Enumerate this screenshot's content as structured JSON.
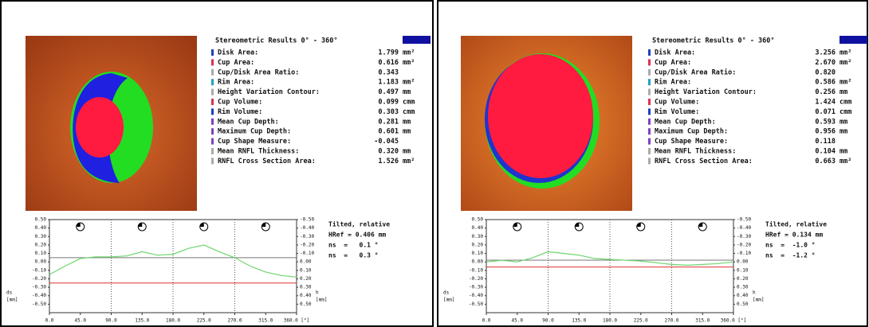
{
  "panels": [
    {
      "results": {
        "title": "Stereometric Results 0° - 360°",
        "rows": [
          {
            "label": "Disk Area:",
            "value": "1.799",
            "unit": "mm²"
          },
          {
            "label": "Cup Area:",
            "value": "0.616",
            "unit": "mm²"
          },
          {
            "label": "Cup/Disk Area Ratio:",
            "value": "0.343",
            "unit": ""
          },
          {
            "label": "Rim Area:",
            "value": "1.183",
            "unit": "mm²"
          },
          {
            "label": "Height Variation Contour:",
            "value": "0.497",
            "unit": "mm"
          },
          {
            "label": "Cup Volume:",
            "value": "0.099",
            "unit": "cmm"
          },
          {
            "label": "Rim Volume:",
            "value": "0.303",
            "unit": "cmm"
          },
          {
            "label": "Mean Cup Depth:",
            "value": "0.281",
            "unit": "mm"
          },
          {
            "label": "Maximum Cup Depth:",
            "value": "0.601",
            "unit": "mm"
          },
          {
            "label": "Cup Shape Measure:",
            "value": "-0.045",
            "unit": ""
          },
          {
            "label": "Mean RNFL Thickness:",
            "value": "0.320",
            "unit": "mm"
          },
          {
            "label": "RNFL Cross Section Area:",
            "value": "1.526",
            "unit": "mm²"
          }
        ]
      },
      "graph": {
        "mode": "Tilted, relative",
        "href": "HRef = 0.406 mm",
        "ns1": "ns  =   0.1 °",
        "ns2": "ns  =   0.3 °",
        "y_label_left": [
          "ds",
          "[mm]"
        ],
        "y_label_right": [
          "h",
          "[mm]"
        ],
        "contour": [
          -0.15,
          -0.05,
          0.04,
          0.06,
          0.06,
          0.07,
          0.12,
          0.08,
          0.09,
          0.16,
          0.2,
          0.12,
          0.05,
          -0.05,
          -0.12,
          -0.16,
          -0.18
        ],
        "contour_line": 0.05,
        "reference_line": -0.25
      }
    },
    {
      "results": {
        "title": "Stereometric Results 0° - 360°",
        "rows": [
          {
            "label": "Disk Area:",
            "value": "3.256",
            "unit": "mm²"
          },
          {
            "label": "Cup Area:",
            "value": "2.670",
            "unit": "mm²"
          },
          {
            "label": "Cup/Disk Area Ratio:",
            "value": "0.820",
            "unit": ""
          },
          {
            "label": "Rim Area:",
            "value": "0.586",
            "unit": "mm²"
          },
          {
            "label": "Height Variation Contour:",
            "value": "0.256",
            "unit": "mm"
          },
          {
            "label": "Cup Volume:",
            "value": "1.424",
            "unit": "cmm"
          },
          {
            "label": "Rim Volume:",
            "value": "0.071",
            "unit": "cmm"
          },
          {
            "label": "Mean Cup Depth:",
            "value": "0.593",
            "unit": "mm"
          },
          {
            "label": "Maximum Cup Depth:",
            "value": "0.956",
            "unit": "mm"
          },
          {
            "label": "Cup Shape Measure:",
            "value": "0.118",
            "unit": ""
          },
          {
            "label": "Mean RNFL Thickness:",
            "value": "0.104",
            "unit": "mm"
          },
          {
            "label": "RNFL Cross Section Area:",
            "value": "0.663",
            "unit": "mm²"
          }
        ]
      },
      "graph": {
        "mode": "Tilted, relative",
        "href": "HRef = 0.134 mm",
        "ns1": "ns  =  -1.0 °",
        "ns2": "ns  =  -1.2 °",
        "y_label_left": [
          "ds",
          "[mm]"
        ],
        "y_label_right": [
          "h",
          "[mm]"
        ],
        "contour": [
          0.0,
          0.02,
          0.0,
          0.05,
          0.12,
          0.1,
          0.08,
          0.04,
          0.03,
          0.02,
          0.01,
          -0.01,
          -0.03,
          -0.04,
          -0.03,
          -0.02,
          0.0
        ],
        "contour_line": 0.02,
        "reference_line": -0.06
      }
    }
  ],
  "graph_axes": {
    "xlim": [
      0,
      360
    ],
    "xticks": [
      {
        "value": 0,
        "label": "0.0"
      },
      {
        "value": 45,
        "label": "45.0"
      },
      {
        "value": 90,
        "label": "90.0"
      },
      {
        "value": 135,
        "label": "135.0"
      },
      {
        "value": 180,
        "label": "180.0"
      },
      {
        "value": 225,
        "label": "225.0"
      },
      {
        "value": 270,
        "label": "270.0"
      },
      {
        "value": 315,
        "label": "315.0"
      },
      {
        "value": 360,
        "label": "360.0 [°]"
      }
    ],
    "ylim": [
      -0.6,
      0.5
    ],
    "yticks": [
      {
        "value": 0.5,
        "label": "0.50"
      },
      {
        "value": 0.4,
        "label": "0.40"
      },
      {
        "value": 0.3,
        "label": "0.30"
      },
      {
        "value": 0.2,
        "label": "0.20"
      },
      {
        "value": 0.1,
        "label": "0.10"
      },
      {
        "value": 0,
        "label": "0.00"
      },
      {
        "value": -0.1,
        "label": "-0.10"
      },
      {
        "value": -0.2,
        "label": "-0.20"
      },
      {
        "value": -0.3,
        "label": "-0.30"
      },
      {
        "value": -0.4,
        "label": "-0.40"
      },
      {
        "value": -0.5,
        "label": "-0.50"
      }
    ],
    "y2lim": [
      0.6,
      -0.5
    ],
    "y2ticks": [
      {
        "value": -0.5,
        "label": "-0.50"
      },
      {
        "value": -0.4,
        "label": "-0.40"
      },
      {
        "value": -0.3,
        "label": "-0.30"
      },
      {
        "value": -0.2,
        "label": "-0.20"
      },
      {
        "value": -0.1,
        "label": "-0.10"
      },
      {
        "value": 0,
        "label": "0.00"
      },
      {
        "value": 0.1,
        "label": "0.10"
      },
      {
        "value": 0.2,
        "label": "0.20"
      },
      {
        "value": 0.3,
        "label": "0.30"
      },
      {
        "value": 0.4,
        "label": "0.40"
      },
      {
        "value": 0.5,
        "label": "0.50"
      }
    ]
  }
}
